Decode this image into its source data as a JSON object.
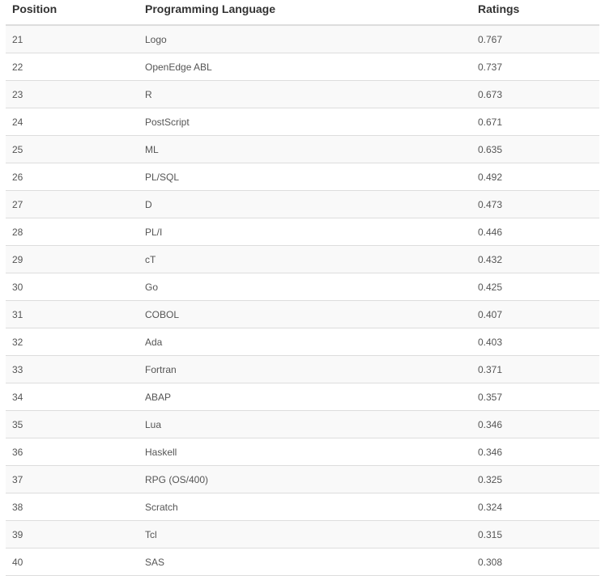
{
  "table": {
    "header": [
      "Position",
      "Programming Language",
      "Ratings"
    ],
    "rows": [
      [
        21,
        "Logo",
        0.767
      ],
      [
        22,
        "OpenEdge ABL",
        0.737
      ],
      [
        23,
        "R",
        0.673
      ],
      [
        24,
        "PostScript",
        0.671
      ],
      [
        25,
        "ML",
        0.635
      ],
      [
        26,
        "PL/SQL",
        0.492
      ],
      [
        27,
        "D",
        0.473
      ],
      [
        28,
        "PL/I",
        0.446
      ],
      [
        29,
        "cT",
        0.432
      ],
      [
        30,
        "Go",
        0.425
      ],
      [
        31,
        "COBOL",
        0.407
      ],
      [
        32,
        "Ada",
        0.403
      ],
      [
        33,
        "Fortran",
        0.371
      ],
      [
        34,
        "ABAP",
        0.357
      ],
      [
        35,
        "Lua",
        0.346
      ],
      [
        36,
        "Haskell",
        0.346
      ],
      [
        37,
        "RPG (OS/400)",
        0.325
      ],
      [
        38,
        "Scratch",
        0.324
      ],
      [
        39,
        "Tcl",
        0.315
      ],
      [
        40,
        "SAS",
        0.308
      ]
    ]
  }
}
